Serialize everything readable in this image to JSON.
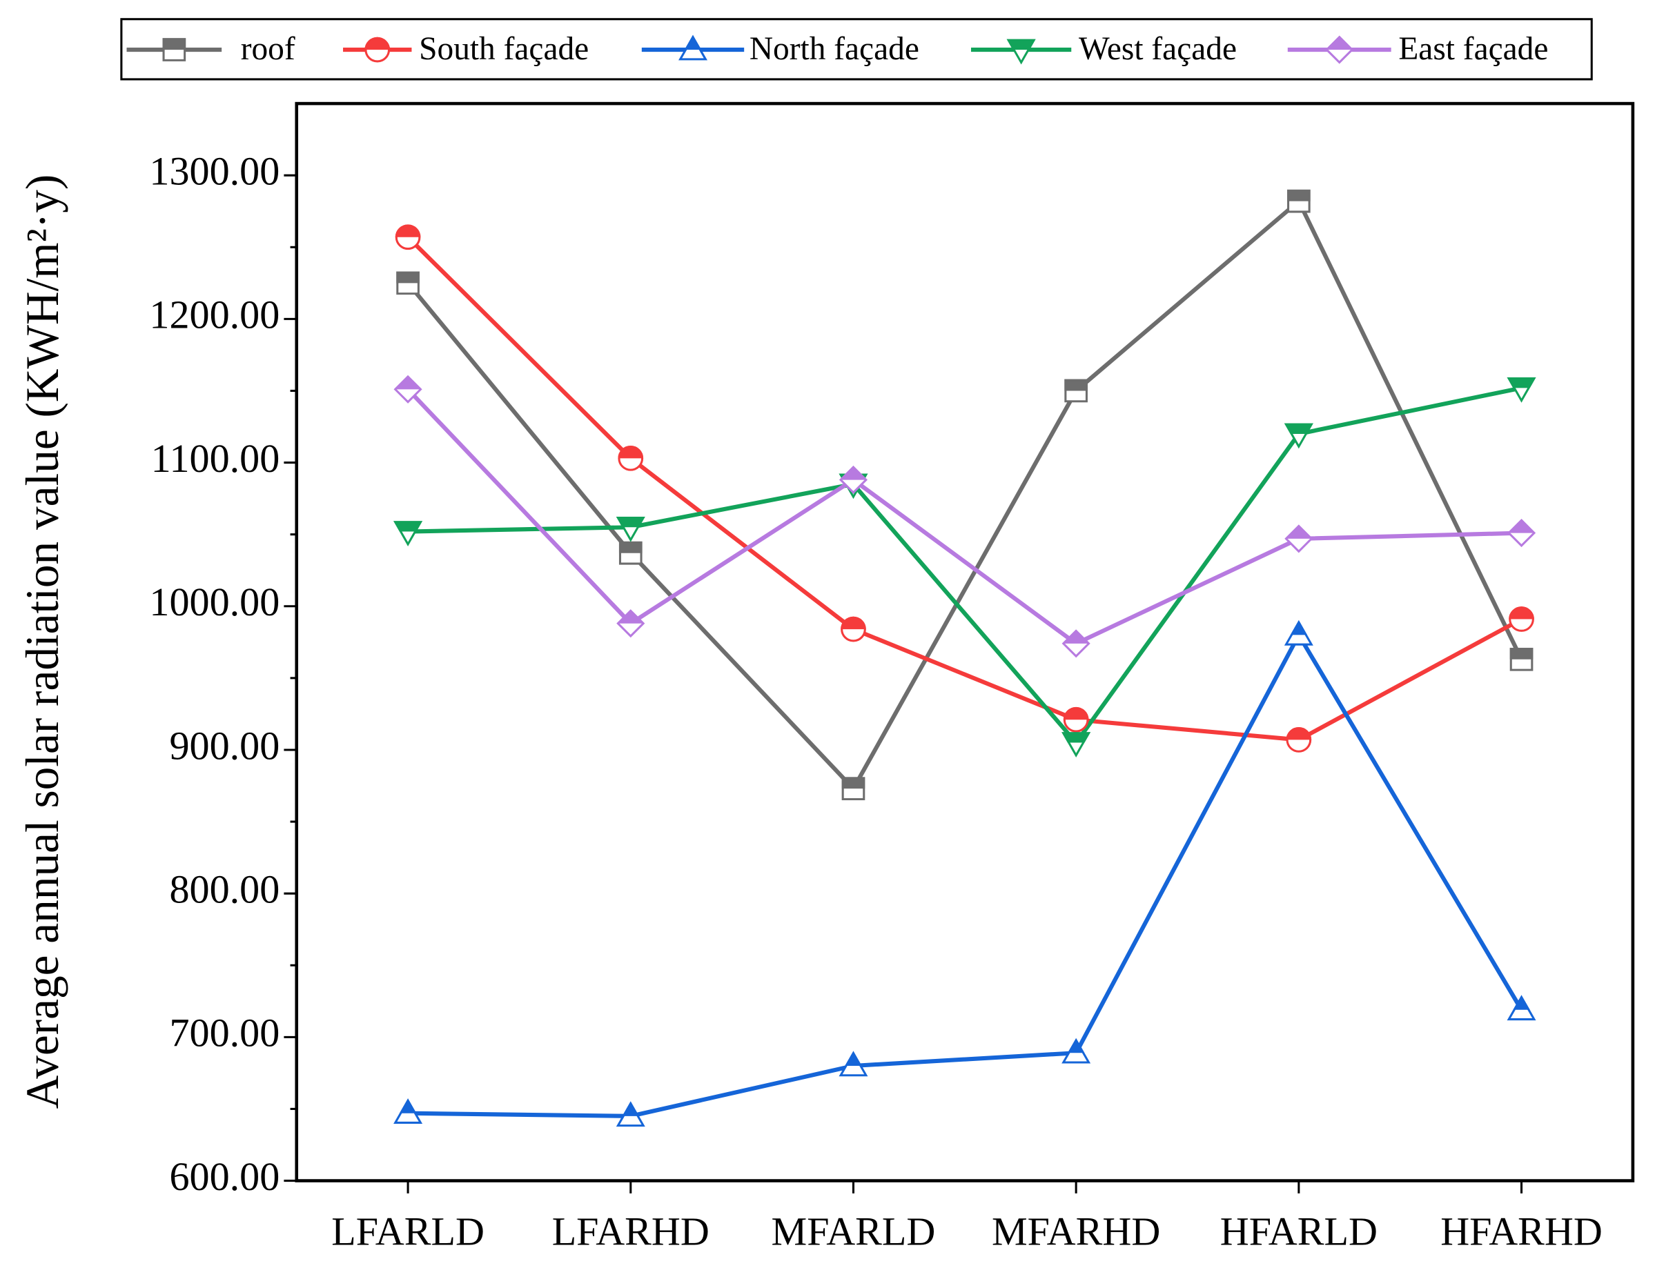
{
  "chart_data": {
    "type": "line",
    "y_label": "Average annual solar radiation value (KWH/m²·y)",
    "categories": [
      "LFARLD",
      "LFARHD",
      "MFARLD",
      "MFARHD",
      "HFARLD",
      "HFARHD"
    ],
    "series": [
      {
        "name": "roof",
        "color": "#6d6d6d",
        "marker": "square",
        "values": [
          1225,
          1037,
          873,
          1150,
          1282,
          963
        ]
      },
      {
        "name": "South façade",
        "color": "#f53b3b",
        "marker": "circle",
        "values": [
          1257,
          1103,
          984,
          921,
          907,
          991
        ]
      },
      {
        "name": "North façade",
        "color": "#1565d8",
        "marker": "triangle-up",
        "values": [
          647,
          645,
          680,
          689,
          980,
          719
        ]
      },
      {
        "name": "West façade",
        "color": "#12a35a",
        "marker": "triangle-down",
        "values": [
          1052,
          1055,
          1085,
          905,
          1120,
          1152
        ]
      },
      {
        "name": "East façade",
        "color": "#b77ae0",
        "marker": "diamond",
        "values": [
          1151,
          988,
          1088,
          974,
          1047,
          1051
        ]
      }
    ],
    "ylim": [
      600,
      1350
    ],
    "yticks": [
      {
        "value": 600,
        "label": "600.00"
      },
      {
        "value": 700,
        "label": "700.00"
      },
      {
        "value": 800,
        "label": "800.00"
      },
      {
        "value": 900,
        "label": "900.00"
      },
      {
        "value": 1000,
        "label": "1000.00"
      },
      {
        "value": 1100,
        "label": "1100.00"
      },
      {
        "value": 1200,
        "label": "1200.00"
      },
      {
        "value": 1300,
        "label": "1300.00"
      }
    ],
    "legend": "top"
  }
}
